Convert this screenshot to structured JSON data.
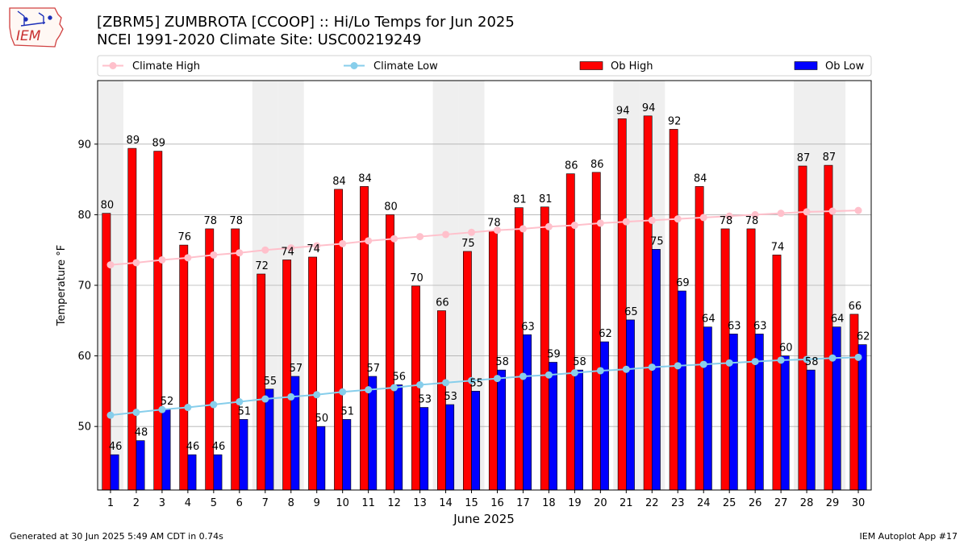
{
  "header": {
    "title_line1": "[ZBRM5] ZUMBROTA [CCOOP] :: Hi/Lo Temps for Jun 2025",
    "title_line2": "NCEI 1991-2020 Climate Site: USC00219249",
    "logo_text": "IEM"
  },
  "footer": {
    "left": "Generated at 30 Jun 2025 5:49 AM CDT in 0.74s",
    "right": "IEM Autoplot App #17"
  },
  "colors": {
    "ob_high": "#ff0000",
    "ob_low": "#0000ff",
    "climate_high": "#ffc0cb",
    "climate_low": "#87ceeb",
    "weekend_band": "#efefef",
    "grid": "#b0b0b0"
  },
  "chart_data": {
    "type": "bar",
    "xlabel": "June 2025",
    "ylabel": "Temperature °F",
    "ylim": [
      41,
      99
    ],
    "yticks": [
      50,
      60,
      70,
      80,
      90
    ],
    "grid": "y",
    "legend_placement": "top",
    "categories": [
      "1",
      "2",
      "3",
      "4",
      "5",
      "6",
      "7",
      "8",
      "9",
      "10",
      "11",
      "12",
      "13",
      "14",
      "15",
      "16",
      "17",
      "18",
      "19",
      "20",
      "21",
      "22",
      "23",
      "24",
      "25",
      "26",
      "27",
      "28",
      "29",
      "30"
    ],
    "weekend_days": [
      1,
      7,
      8,
      14,
      15,
      21,
      22,
      28,
      29
    ],
    "series": [
      {
        "name": "Ob High",
        "kind": "bar",
        "values": [
          80.2,
          89.4,
          89.0,
          75.7,
          78.0,
          78.0,
          71.6,
          73.6,
          74.0,
          83.6,
          84.0,
          80.0,
          69.9,
          66.4,
          74.8,
          77.7,
          81.0,
          81.1,
          85.8,
          86.0,
          93.6,
          94.0,
          92.1,
          84.0,
          78.0,
          78.0,
          74.3,
          86.9,
          87.0,
          65.9
        ],
        "labels": [
          "80",
          "89",
          "89",
          "76",
          "78",
          "78",
          "72",
          "74",
          "74",
          "84",
          "84",
          "80",
          "70",
          "66",
          "75",
          "78",
          "81",
          "81",
          "86",
          "86",
          "94",
          "94",
          "92",
          "84",
          "78",
          "78",
          "74",
          "87",
          "87",
          "66"
        ]
      },
      {
        "name": "Ob Low",
        "kind": "bar",
        "values": [
          46.0,
          48.0,
          52.4,
          46.0,
          46.0,
          51.0,
          55.3,
          57.1,
          50.0,
          51.0,
          57.1,
          55.9,
          52.7,
          53.1,
          55.0,
          58.0,
          63.0,
          59.1,
          58.0,
          62.0,
          65.1,
          75.1,
          69.2,
          64.1,
          63.1,
          63.1,
          60.0,
          58.0,
          64.1,
          61.6
        ],
        "labels": [
          "46",
          "48",
          "52",
          "46",
          "46",
          "51",
          "55",
          "57",
          "50",
          "51",
          "57",
          "56",
          "53",
          "53",
          "55",
          "58",
          "63",
          "59",
          "58",
          "62",
          "65",
          "75",
          "69",
          "64",
          "63",
          "63",
          "60",
          "58",
          "64",
          "62"
        ]
      },
      {
        "name": "Climate High",
        "kind": "line",
        "values": [
          72.9,
          73.2,
          73.6,
          73.9,
          74.3,
          74.6,
          75.0,
          75.3,
          75.6,
          75.9,
          76.3,
          76.6,
          76.9,
          77.2,
          77.5,
          77.8,
          78.0,
          78.3,
          78.5,
          78.8,
          79.0,
          79.2,
          79.4,
          79.6,
          79.8,
          80.0,
          80.2,
          80.4,
          80.5,
          80.6
        ]
      },
      {
        "name": "Climate Low",
        "kind": "line",
        "values": [
          51.6,
          52.0,
          52.4,
          52.7,
          53.1,
          53.5,
          53.9,
          54.2,
          54.5,
          54.9,
          55.2,
          55.5,
          55.9,
          56.2,
          56.5,
          56.8,
          57.1,
          57.3,
          57.6,
          57.9,
          58.1,
          58.4,
          58.6,
          58.8,
          59.0,
          59.2,
          59.4,
          59.5,
          59.7,
          59.8
        ]
      }
    ]
  }
}
